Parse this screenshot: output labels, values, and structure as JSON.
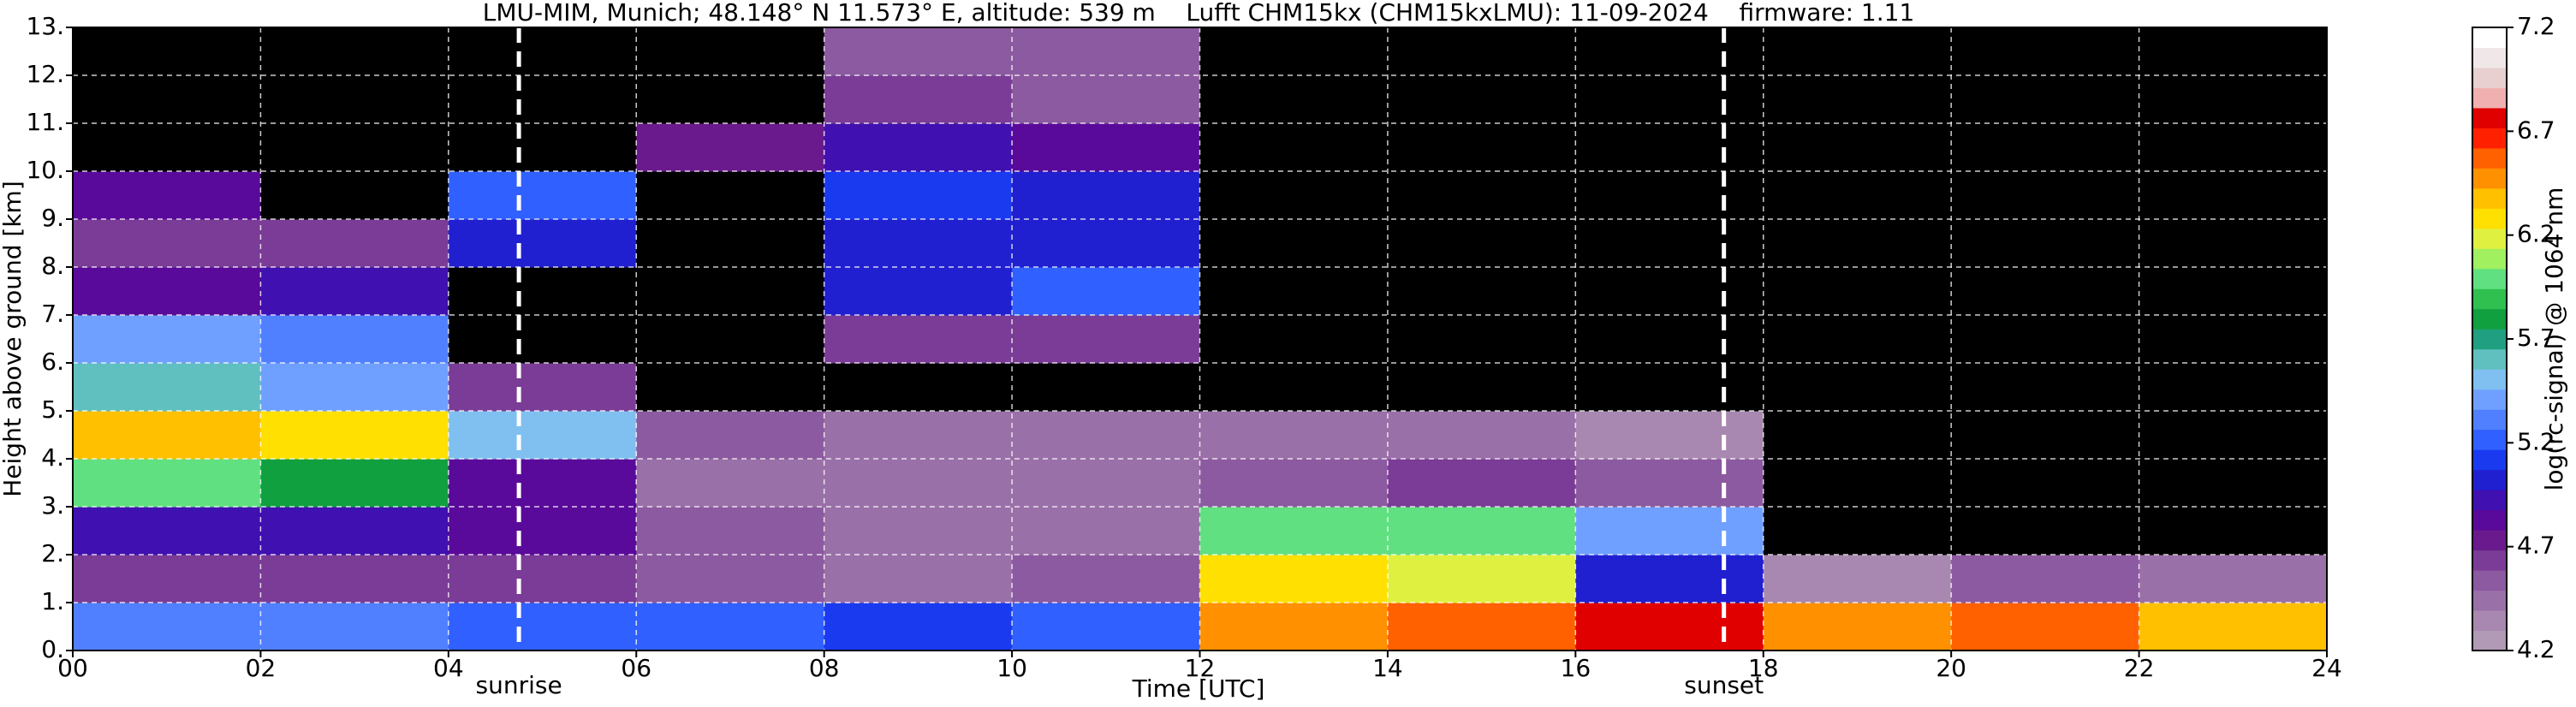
{
  "chart_data": {
    "type": "heatmap",
    "title": "LMU-MIM, Munich; 48.148° N 11.573° E, altitude: 539 m    Lufft CHM15kx (CHM15kxLMU): 11-09-2024    firmware: 1.11",
    "xlabel": "Time [UTC]",
    "ylabel": "Height above ground [km]",
    "colorbar_label": "log(rc-signal) @ 1064 nm",
    "x": [
      0,
      2,
      4,
      6,
      8,
      10,
      12,
      14,
      16,
      18,
      20,
      22,
      24
    ],
    "y": [
      0,
      1,
      2,
      3,
      4,
      5,
      6,
      7,
      8,
      9,
      10,
      11,
      12,
      13
    ],
    "values": [
      [
        5.3,
        5.3,
        5.2,
        5.2,
        5.1,
        5.2,
        6.5,
        6.6,
        6.8,
        6.5,
        6.6,
        6.4
      ],
      [
        4.6,
        4.6,
        4.6,
        4.5,
        4.4,
        4.5,
        6.3,
        6.2,
        5.0,
        4.3,
        4.5,
        4.4
      ],
      [
        4.9,
        4.9,
        4.8,
        4.5,
        4.4,
        4.4,
        6.0,
        6.0,
        5.4,
        4.0,
        4.0,
        4.0
      ],
      [
        6.0,
        5.8,
        4.8,
        4.4,
        4.4,
        4.4,
        4.5,
        4.6,
        4.5,
        4.0,
        4.0,
        4.0
      ],
      [
        6.4,
        6.3,
        5.5,
        4.5,
        4.4,
        4.4,
        4.4,
        4.4,
        4.3,
        4.0,
        4.0,
        4.0
      ],
      [
        5.6,
        5.4,
        4.6,
        4.1,
        4.1,
        4.1,
        4.1,
        4.1,
        4.1,
        4.0,
        4.0,
        4.0
      ],
      [
        5.4,
        5.3,
        4.1,
        4.1,
        4.6,
        4.6,
        4.1,
        4.1,
        4.1,
        4.0,
        4.0,
        4.0
      ],
      [
        4.8,
        4.9,
        4.1,
        4.1,
        5.0,
        5.2,
        4.1,
        4.1,
        4.1,
        4.0,
        4.0,
        4.0
      ],
      [
        4.6,
        4.6,
        5.0,
        4.1,
        5.0,
        5.0,
        4.1,
        4.1,
        4.1,
        4.0,
        4.0,
        4.0
      ],
      [
        4.8,
        4.1,
        5.2,
        4.1,
        5.1,
        5.0,
        4.1,
        4.1,
        4.1,
        4.0,
        4.0,
        4.0
      ],
      [
        4.1,
        4.1,
        4.1,
        4.7,
        4.9,
        4.8,
        4.1,
        4.1,
        4.1,
        4.0,
        4.0,
        4.0
      ],
      [
        4.1,
        4.1,
        4.1,
        4.1,
        4.6,
        4.5,
        4.1,
        4.1,
        4.1,
        4.0,
        4.0,
        4.0
      ],
      [
        4.1,
        4.1,
        4.1,
        4.1,
        4.5,
        4.5,
        4.1,
        4.1,
        4.1,
        4.0,
        4.0,
        4.0
      ]
    ],
    "xlim": [
      0,
      24
    ],
    "ylim": [
      0,
      13
    ],
    "xticks": [
      {
        "value": 0,
        "label": "00"
      },
      {
        "value": 2,
        "label": "02"
      },
      {
        "value": 4,
        "label": "04"
      },
      {
        "value": 6,
        "label": "06"
      },
      {
        "value": 8,
        "label": "08"
      },
      10,
      12,
      14,
      16,
      18,
      20,
      22,
      24
    ],
    "yticks": [
      {
        "value": 0,
        "label": "0."
      },
      {
        "value": 1,
        "label": "1."
      },
      {
        "value": 2,
        "label": "2."
      },
      {
        "value": 3,
        "label": "3."
      },
      {
        "value": 4,
        "label": "4."
      },
      {
        "value": 5,
        "label": "5."
      },
      {
        "value": 6,
        "label": "6."
      },
      {
        "value": 7,
        "label": "7."
      },
      {
        "value": 8,
        "label": "8."
      },
      {
        "value": 9,
        "label": "9."
      },
      {
        "value": 10,
        "label": "10."
      },
      {
        "value": 11,
        "label": "11."
      },
      {
        "value": 12,
        "label": "12."
      },
      {
        "value": 13,
        "label": "13."
      }
    ],
    "grid": true,
    "clim": [
      4.2,
      7.2
    ],
    "cticks": [
      4.2,
      4.7,
      5.2,
      5.7,
      6.2,
      6.7,
      7.2
    ],
    "under_color": "#000000",
    "colors": [
      "#b09ab5",
      "#a888b0",
      "#9a70a8",
      "#8c5aa0",
      "#7a3c96",
      "#6a1a8c",
      "#5a0a9a",
      "#4010b0",
      "#2020d0",
      "#1a3af0",
      "#3060ff",
      "#5080ff",
      "#70a0ff",
      "#80c0f0",
      "#60c0c0",
      "#20a080",
      "#10a040",
      "#30c050",
      "#60e080",
      "#a0f060",
      "#e0f040",
      "#ffe000",
      "#ffc000",
      "#ff9000",
      "#ff6000",
      "#ff2000",
      "#e00000",
      "#f0b0b0",
      "#e8d0d0",
      "#f0e8e8",
      "#ffffff"
    ],
    "annotations": [
      {
        "text": "sunrise",
        "x": 4.75
      },
      {
        "text": "sunset",
        "x": 17.58
      }
    ]
  }
}
